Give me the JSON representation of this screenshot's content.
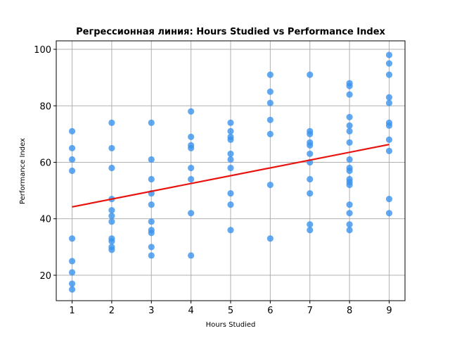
{
  "chart_data": {
    "type": "scatter",
    "title": "Регрессионная линия: Hours Studied vs Performance Index",
    "xlabel": "Hours Studied",
    "ylabel": "Performance Index",
    "xlim": [
      0.6,
      9.4
    ],
    "ylim": [
      11,
      103
    ],
    "xticks": [
      1,
      2,
      3,
      4,
      5,
      6,
      7,
      8,
      9
    ],
    "yticks": [
      20,
      40,
      60,
      80,
      100
    ],
    "grid": true,
    "colors": {
      "points": "#3b93ee",
      "regression": "#e8130f"
    },
    "series": [
      {
        "type": "scatter",
        "points": [
          [
            1,
            71
          ],
          [
            1,
            65
          ],
          [
            1,
            61
          ],
          [
            1,
            57
          ],
          [
            1,
            33
          ],
          [
            1,
            25
          ],
          [
            1,
            21
          ],
          [
            1,
            17
          ],
          [
            1,
            15
          ],
          [
            2,
            74
          ],
          [
            2,
            65
          ],
          [
            2,
            58
          ],
          [
            2,
            47
          ],
          [
            2,
            43
          ],
          [
            2,
            41
          ],
          [
            2,
            39
          ],
          [
            2,
            33
          ],
          [
            2,
            32
          ],
          [
            2,
            30
          ],
          [
            2,
            29
          ],
          [
            3,
            74
          ],
          [
            3,
            61
          ],
          [
            3,
            54
          ],
          [
            3,
            49
          ],
          [
            3,
            45
          ],
          [
            3,
            39
          ],
          [
            3,
            36
          ],
          [
            3,
            35
          ],
          [
            3,
            30
          ],
          [
            3,
            27
          ],
          [
            4,
            78
          ],
          [
            4,
            69
          ],
          [
            4,
            66
          ],
          [
            4,
            65
          ],
          [
            4,
            58
          ],
          [
            4,
            54
          ],
          [
            4,
            42
          ],
          [
            4,
            27
          ],
          [
            5,
            74
          ],
          [
            5,
            71
          ],
          [
            5,
            69
          ],
          [
            5,
            68
          ],
          [
            5,
            63
          ],
          [
            5,
            61
          ],
          [
            5,
            58
          ],
          [
            5,
            49
          ],
          [
            5,
            45
          ],
          [
            5,
            36
          ],
          [
            6,
            91
          ],
          [
            6,
            85
          ],
          [
            6,
            81
          ],
          [
            6,
            75
          ],
          [
            6,
            70
          ],
          [
            6,
            52
          ],
          [
            6,
            33
          ],
          [
            7,
            91
          ],
          [
            7,
            71
          ],
          [
            7,
            70
          ],
          [
            7,
            67
          ],
          [
            7,
            66
          ],
          [
            7,
            63
          ],
          [
            7,
            60
          ],
          [
            7,
            54
          ],
          [
            7,
            49
          ],
          [
            7,
            38
          ],
          [
            7,
            36
          ],
          [
            8,
            88
          ],
          [
            8,
            87
          ],
          [
            8,
            84
          ],
          [
            8,
            76
          ],
          [
            8,
            73
          ],
          [
            8,
            71
          ],
          [
            8,
            67
          ],
          [
            8,
            61
          ],
          [
            8,
            58
          ],
          [
            8,
            57
          ],
          [
            8,
            54
          ],
          [
            8,
            53
          ],
          [
            8,
            52
          ],
          [
            8,
            45
          ],
          [
            8,
            42
          ],
          [
            8,
            38
          ],
          [
            8,
            36
          ],
          [
            9,
            98
          ],
          [
            9,
            95
          ],
          [
            9,
            91
          ],
          [
            9,
            83
          ],
          [
            9,
            81
          ],
          [
            9,
            74
          ],
          [
            9,
            73
          ],
          [
            9,
            68
          ],
          [
            9,
            64
          ],
          [
            9,
            47
          ],
          [
            9,
            42
          ]
        ]
      },
      {
        "type": "line",
        "x": [
          1,
          9
        ],
        "y": [
          44.2,
          66.3
        ]
      }
    ]
  }
}
